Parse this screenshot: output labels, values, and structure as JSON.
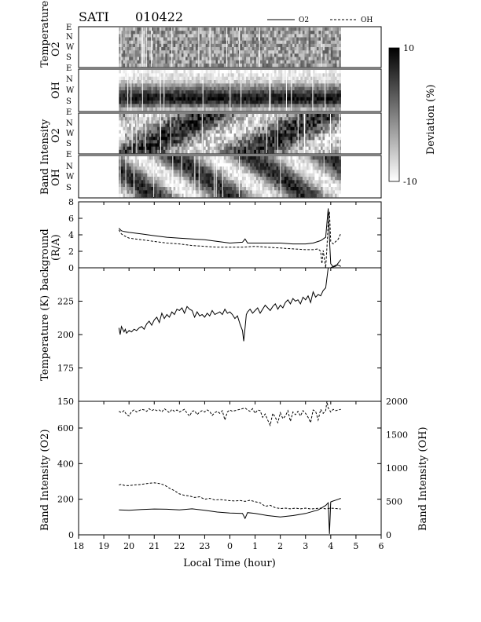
{
  "header": {
    "instrument": "SATI",
    "date": "010422"
  },
  "legend": {
    "o2": "O2",
    "oh": "OH"
  },
  "x_axis": {
    "label": "Local Time (hour)",
    "ticks": [
      "18",
      "19",
      "20",
      "21",
      "22",
      "23",
      "0",
      "1",
      "2",
      "3",
      "4",
      "5",
      "6"
    ]
  },
  "colorbar": {
    "label": "Deviation (%)",
    "max_label": "10",
    "min_label": "-10",
    "range": [
      -10,
      10
    ]
  },
  "keogram_panels": [
    {
      "label_top": "Temperature",
      "label_bottom": "O2",
      "directions": [
        "E",
        "N",
        "W",
        "S",
        "E"
      ]
    },
    {
      "label_top": "Temperature",
      "label_bottom": "OH",
      "directions": [
        "N",
        "W",
        "S",
        "E"
      ]
    },
    {
      "label_top": "Band Intensity",
      "label_bottom": "O2",
      "directions": [
        "N",
        "W",
        "S",
        "E"
      ]
    },
    {
      "label_top": "Band Intensity",
      "label_bottom": "OH",
      "directions": [
        "N",
        "W",
        "S"
      ]
    }
  ],
  "keogram_label_bands": {
    "temperature": "Temperature",
    "band_intensity": "Band Intensity"
  },
  "chart_data": [
    {
      "type": "line",
      "name": "background",
      "ylabel": "background (R/A)",
      "ylabel_line1": "background",
      "ylabel_line2": "(R/A)",
      "ylim": [
        0,
        8
      ],
      "yticks": [
        "0",
        "2",
        "4",
        "6",
        "8"
      ],
      "xlim": [
        18,
        30
      ],
      "series": [
        {
          "name": "O2",
          "style": "solid",
          "x": [
            19.6,
            19.7,
            19.8,
            20.0,
            20.5,
            21.0,
            21.5,
            22.0,
            22.5,
            23.0,
            23.5,
            24.0,
            24.5,
            24.6,
            24.7,
            25.0,
            25.5,
            26.0,
            26.5,
            27.0,
            27.3,
            27.6,
            27.8,
            27.9,
            27.95,
            28.0,
            28.1,
            28.2,
            28.3,
            28.4
          ],
          "y": [
            4.8,
            4.5,
            4.4,
            4.3,
            4.1,
            3.9,
            3.7,
            3.6,
            3.5,
            3.4,
            3.2,
            3.0,
            3.1,
            3.5,
            3.0,
            3.0,
            3.0,
            3.0,
            2.9,
            2.9,
            3.0,
            3.3,
            3.7,
            7.2,
            3.5,
            0.5,
            0.1,
            0.2,
            0.6,
            1.0
          ]
        },
        {
          "name": "OH",
          "style": "dashed",
          "x": [
            19.6,
            19.7,
            19.8,
            20.0,
            20.5,
            21.0,
            21.5,
            22.0,
            22.5,
            23.0,
            23.5,
            24.0,
            24.5,
            25.0,
            25.5,
            26.0,
            26.5,
            27.0,
            27.3,
            27.5,
            27.6,
            27.65,
            27.7,
            27.8,
            27.85,
            27.9,
            27.95,
            28.0,
            28.1,
            28.2,
            28.3,
            28.4
          ],
          "y": [
            4.6,
            4.1,
            3.9,
            3.6,
            3.4,
            3.2,
            3.0,
            2.9,
            2.7,
            2.6,
            2.5,
            2.5,
            2.5,
            2.6,
            2.5,
            2.4,
            2.3,
            2.2,
            2.2,
            2.3,
            2.0,
            0.5,
            2.1,
            0.0,
            2.5,
            5.5,
            6.8,
            3.2,
            2.9,
            3.2,
            3.5,
            4.2
          ]
        }
      ]
    },
    {
      "type": "line",
      "name": "temperature",
      "ylabel": "Temperature (K)",
      "ylim": [
        150,
        250
      ],
      "yticks": [
        "150",
        "175",
        "200",
        "225"
      ],
      "xlim": [
        18,
        30
      ],
      "series": [
        {
          "name": "O2",
          "style": "solid",
          "x": [
            19.6,
            19.65,
            19.7,
            19.8,
            19.85,
            19.9,
            20.0,
            20.1,
            20.2,
            20.3,
            20.4,
            20.5,
            20.6,
            20.7,
            20.8,
            20.9,
            21.0,
            21.1,
            21.2,
            21.3,
            21.4,
            21.5,
            21.6,
            21.7,
            21.8,
            21.9,
            22.0,
            22.1,
            22.2,
            22.3,
            22.4,
            22.5,
            22.6,
            22.7,
            22.8,
            22.9,
            23.0,
            23.1,
            23.2,
            23.3,
            23.4,
            23.5,
            23.6,
            23.7,
            23.8,
            23.9,
            24.0,
            24.1,
            24.2,
            24.3,
            24.4,
            24.5,
            24.55,
            24.6,
            24.65,
            24.7,
            24.8,
            24.9,
            25.0,
            25.1,
            25.2,
            25.3,
            25.4,
            25.5,
            25.6,
            25.7,
            25.8,
            25.9,
            26.0,
            26.1,
            26.2,
            26.3,
            26.4,
            26.5,
            26.6,
            26.7,
            26.8,
            26.9,
            27.0,
            27.1,
            27.2,
            27.3,
            27.4,
            27.5,
            27.6,
            27.7,
            27.8,
            27.9,
            28.0,
            28.1,
            28.2,
            28.3,
            28.4
          ],
          "y": [
            205,
            200,
            206,
            202,
            204,
            201,
            203,
            202,
            204,
            203,
            205,
            206,
            204,
            208,
            210,
            207,
            211,
            213,
            209,
            216,
            212,
            215,
            213,
            217,
            215,
            219,
            218,
            220,
            216,
            221,
            219,
            218,
            213,
            217,
            214,
            215,
            213,
            216,
            214,
            218,
            215,
            216,
            217,
            215,
            219,
            216,
            217,
            215,
            212,
            214,
            208,
            203,
            195,
            205,
            215,
            217,
            219,
            216,
            218,
            220,
            216,
            219,
            222,
            220,
            218,
            221,
            223,
            219,
            222,
            220,
            224,
            226,
            223,
            227,
            225,
            226,
            223,
            228,
            226,
            229,
            224,
            232,
            228,
            230,
            229,
            233,
            235,
            250,
            250,
            251,
            252,
            252,
            251
          ]
        }
      ]
    },
    {
      "type": "line",
      "name": "band_intensity",
      "ylabel": "Band Intensity (O2)",
      "ylabel_right": "Band Intensity (OH)",
      "ylim": [
        0,
        750
      ],
      "yticks": [
        "0",
        "200",
        "400",
        "600"
      ],
      "ylim_right": [
        0,
        2000
      ],
      "yticks_right": [
        "0",
        "500",
        "1000",
        "1500",
        "2000"
      ],
      "xlim": [
        18,
        30
      ],
      "series": [
        {
          "name": "O2",
          "style": "solid",
          "axis": "left",
          "x": [
            19.6,
            20.0,
            20.5,
            21.0,
            21.5,
            22.0,
            22.5,
            23.0,
            23.5,
            24.0,
            24.5,
            24.6,
            24.7,
            25.0,
            25.5,
            26.0,
            26.5,
            27.0,
            27.5,
            27.8,
            27.9,
            27.95,
            28.0,
            28.1,
            28.2,
            28.3,
            28.4
          ],
          "y": [
            140,
            138,
            142,
            145,
            144,
            140,
            146,
            138,
            128,
            122,
            120,
            92,
            125,
            120,
            108,
            100,
            108,
            120,
            140,
            165,
            180,
            5,
            185,
            190,
            195,
            200,
            205
          ]
        },
        {
          "name": "OH",
          "style": "dashed",
          "axis": "left",
          "x": [
            19.6,
            19.7,
            19.8,
            20.0,
            20.2,
            20.4,
            20.6,
            20.8,
            21.0,
            21.2,
            21.4,
            21.6,
            21.8,
            22.0,
            22.2,
            22.4,
            22.6,
            22.8,
            23.0,
            23.2,
            23.4,
            23.6,
            23.8,
            24.0,
            24.2,
            24.4,
            24.6,
            24.8,
            25.0,
            25.2,
            25.4,
            25.6,
            25.8,
            26.0,
            26.2,
            26.4,
            26.6,
            26.8,
            27.0,
            27.2,
            27.4,
            27.6,
            27.8,
            28.0,
            28.2,
            28.4
          ],
          "y": [
            280,
            284,
            278,
            276,
            280,
            282,
            286,
            290,
            292,
            288,
            280,
            262,
            248,
            230,
            222,
            218,
            210,
            214,
            200,
            205,
            196,
            198,
            195,
            192,
            190,
            193,
            188,
            194,
            186,
            180,
            160,
            166,
            152,
            148,
            150,
            146,
            150,
            146,
            150,
            145,
            148,
            150,
            146,
            150,
            148,
            145
          ]
        },
        {
          "name": "OH",
          "style": "dashed",
          "axis": "right",
          "x": [
            19.6,
            19.7,
            19.8,
            19.9,
            20.0,
            20.1,
            20.2,
            20.3,
            20.4,
            20.5,
            20.6,
            20.7,
            20.8,
            20.9,
            21.0,
            21.1,
            21.2,
            21.3,
            21.4,
            21.5,
            21.6,
            21.7,
            21.8,
            21.9,
            22.0,
            22.1,
            22.2,
            22.3,
            22.4,
            22.5,
            22.6,
            22.7,
            22.8,
            22.9,
            23.0,
            23.1,
            23.2,
            23.3,
            23.4,
            23.5,
            23.6,
            23.7,
            23.8,
            23.9,
            24.0,
            24.1,
            24.2,
            24.3,
            24.4,
            24.5,
            24.6,
            24.7,
            24.8,
            24.9,
            25.0,
            25.1,
            25.2,
            25.3,
            25.4,
            25.5,
            25.6,
            25.7,
            25.8,
            25.9,
            26.0,
            26.1,
            26.2,
            26.3,
            26.4,
            26.5,
            26.6,
            26.7,
            26.8,
            26.9,
            27.0,
            27.1,
            27.2,
            27.3,
            27.4,
            27.5,
            27.6,
            27.7,
            27.8,
            27.85,
            27.9,
            28.0,
            28.1,
            28.2,
            28.3,
            28.4
          ],
          "y": [
            1850,
            1830,
            1860,
            1800,
            1780,
            1850,
            1870,
            1840,
            1860,
            1880,
            1870,
            1850,
            1890,
            1860,
            1880,
            1860,
            1870,
            1840,
            1890,
            1860,
            1830,
            1880,
            1850,
            1870,
            1840,
            1860,
            1880,
            1820,
            1780,
            1850,
            1860,
            1800,
            1840,
            1860,
            1840,
            1870,
            1850,
            1790,
            1830,
            1850,
            1820,
            1860,
            1720,
            1840,
            1870,
            1850,
            1860,
            1870,
            1880,
            1890,
            1900,
            1870,
            1850,
            1890,
            1820,
            1870,
            1860,
            1760,
            1810,
            1720,
            1640,
            1820,
            1760,
            1680,
            1830,
            1740,
            1780,
            1860,
            1700,
            1840,
            1800,
            1850,
            1780,
            1860,
            1820,
            1760,
            1680,
            1870,
            1850,
            1720,
            1880,
            1820,
            1860,
            2000,
            1900,
            1840,
            1880,
            1860,
            1870,
            1880
          ]
        }
      ]
    }
  ]
}
